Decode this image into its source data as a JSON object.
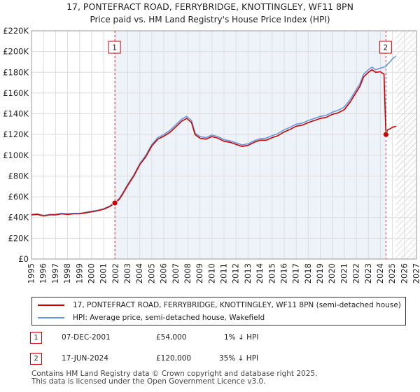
{
  "chart_data": {
    "type": "line",
    "title": "17, PONTEFRACT ROAD, FERRYBRIDGE, KNOTTINGLEY, WF11 8PN",
    "subtitle": "Price paid vs. HM Land Registry's House Price Index (HPI)",
    "xlabel": "",
    "ylabel": "",
    "xlim": [
      1995,
      2027
    ],
    "ylim": [
      0,
      220000
    ],
    "x_ticks": [
      "1995",
      "1996",
      "1997",
      "1998",
      "1999",
      "2000",
      "2001",
      "2002",
      "2003",
      "2004",
      "2005",
      "2006",
      "2007",
      "2008",
      "2009",
      "2010",
      "2011",
      "2012",
      "2013",
      "2014",
      "2015",
      "2016",
      "2017",
      "2018",
      "2019",
      "2020",
      "2021",
      "2022",
      "2023",
      "2024",
      "2025",
      "2026",
      "2027"
    ],
    "y_ticks": [
      "£0",
      "£20K",
      "£40K",
      "£60K",
      "£80K",
      "£100K",
      "£120K",
      "£140K",
      "£160K",
      "£180K",
      "£200K",
      "£220K"
    ],
    "grid": true,
    "forecast_start": 2025.25,
    "series": [
      {
        "name": "17, PONTEFRACT ROAD, FERRYBRIDGE, KNOTTINGLEY, WF11 8PN (semi-detached house)",
        "color": "#cc0000",
        "x": [
          1995.0,
          1995.5,
          1996.0,
          1996.5,
          1997.0,
          1997.5,
          1998.0,
          1998.5,
          1999.0,
          1999.5,
          2000.0,
          2000.5,
          2001.0,
          2001.5,
          2001.93,
          2002.3,
          2002.6,
          2003.0,
          2003.5,
          2004.0,
          2004.5,
          2005.0,
          2005.5,
          2006.0,
          2006.5,
          2007.0,
          2007.5,
          2007.9,
          2008.3,
          2008.6,
          2009.0,
          2009.5,
          2010.0,
          2010.5,
          2011.0,
          2011.5,
          2012.0,
          2012.5,
          2013.0,
          2013.5,
          2014.0,
          2014.5,
          2015.0,
          2015.5,
          2016.0,
          2016.5,
          2017.0,
          2017.5,
          2018.0,
          2018.5,
          2019.0,
          2019.5,
          2020.0,
          2020.5,
          2021.0,
          2021.5,
          2022.0,
          2022.3,
          2022.6,
          2023.0,
          2023.3,
          2023.6,
          2024.0,
          2024.3,
          2024.46,
          2024.6,
          2024.8,
          2025.0,
          2025.3
        ],
        "values": [
          42500,
          43000,
          41500,
          42500,
          42500,
          43500,
          43000,
          43500,
          43500,
          44500,
          45500,
          46500,
          48000,
          50500,
          54000,
          57500,
          63000,
          71000,
          80000,
          91000,
          98500,
          109000,
          115500,
          118500,
          122000,
          127500,
          133000,
          135500,
          131500,
          120000,
          116500,
          115500,
          118000,
          116500,
          113500,
          112500,
          110500,
          108500,
          109500,
          112500,
          114500,
          114500,
          117000,
          119000,
          122500,
          125000,
          128000,
          129000,
          131500,
          133500,
          135500,
          136500,
          139500,
          141000,
          144000,
          151500,
          161000,
          166500,
          175500,
          180000,
          182500,
          180000,
          180500,
          178000,
          120000,
          124500,
          125500,
          127000,
          128000
        ]
      },
      {
        "name": "HPI: Average price, semi-detached house, Wakefield",
        "color": "#6699dd",
        "x": [
          1995.0,
          1995.5,
          1996.0,
          1996.5,
          1997.0,
          1997.5,
          1998.0,
          1998.5,
          1999.0,
          1999.5,
          2000.0,
          2000.5,
          2001.0,
          2001.5,
          2001.93,
          2002.3,
          2002.6,
          2003.0,
          2003.5,
          2004.0,
          2004.5,
          2005.0,
          2005.5,
          2006.0,
          2006.5,
          2007.0,
          2007.5,
          2007.9,
          2008.3,
          2008.6,
          2009.0,
          2009.5,
          2010.0,
          2010.5,
          2011.0,
          2011.5,
          2012.0,
          2012.5,
          2013.0,
          2013.5,
          2014.0,
          2014.5,
          2015.0,
          2015.5,
          2016.0,
          2016.5,
          2017.0,
          2017.5,
          2018.0,
          2018.5,
          2019.0,
          2019.5,
          2020.0,
          2020.5,
          2021.0,
          2021.5,
          2022.0,
          2022.3,
          2022.6,
          2023.0,
          2023.3,
          2023.6,
          2024.0,
          2024.3,
          2024.46,
          2024.6,
          2024.8,
          2025.0,
          2025.3
        ],
        "values": [
          43000,
          43500,
          42000,
          43000,
          43000,
          44000,
          43500,
          44000,
          44000,
          45000,
          46000,
          47000,
          48500,
          51000,
          54500,
          58500,
          64000,
          72000,
          81000,
          92000,
          100000,
          110500,
          117000,
          120000,
          124000,
          129500,
          135000,
          137500,
          133500,
          121500,
          118000,
          117000,
          119500,
          118000,
          115000,
          114000,
          112000,
          110000,
          111000,
          114000,
          116000,
          116500,
          119000,
          121000,
          124500,
          127000,
          130000,
          131000,
          133500,
          135500,
          137500,
          138500,
          141500,
          143500,
          146500,
          154000,
          163500,
          169000,
          178000,
          182500,
          185000,
          182500,
          184000,
          185000,
          185500,
          188000,
          190000,
          193000,
          195500
        ]
      }
    ],
    "markers": [
      {
        "label": "1",
        "x": 2001.93,
        "y": 54000
      },
      {
        "label": "2",
        "x": 2024.46,
        "y": 120000
      }
    ]
  },
  "legend": {
    "property_label": "17, PONTEFRACT ROAD, FERRYBRIDGE, KNOTTINGLEY, WF11 8PN (semi-detached house)",
    "hpi_label": "HPI: Average price, semi-detached house, Wakefield",
    "property_color": "#cc0000",
    "hpi_color": "#6699dd"
  },
  "sales": [
    {
      "num": "1",
      "date": "07-DEC-2001",
      "price": "£54,000",
      "hpi": "1% ↓ HPI"
    },
    {
      "num": "2",
      "date": "17-JUN-2024",
      "price": "£120,000",
      "hpi": "35% ↓ HPI"
    }
  ],
  "footer": {
    "line1": "Contains HM Land Registry data © Crown copyright and database right 2025.",
    "line2": "This data is licensed under the Open Government Licence v3.0."
  }
}
